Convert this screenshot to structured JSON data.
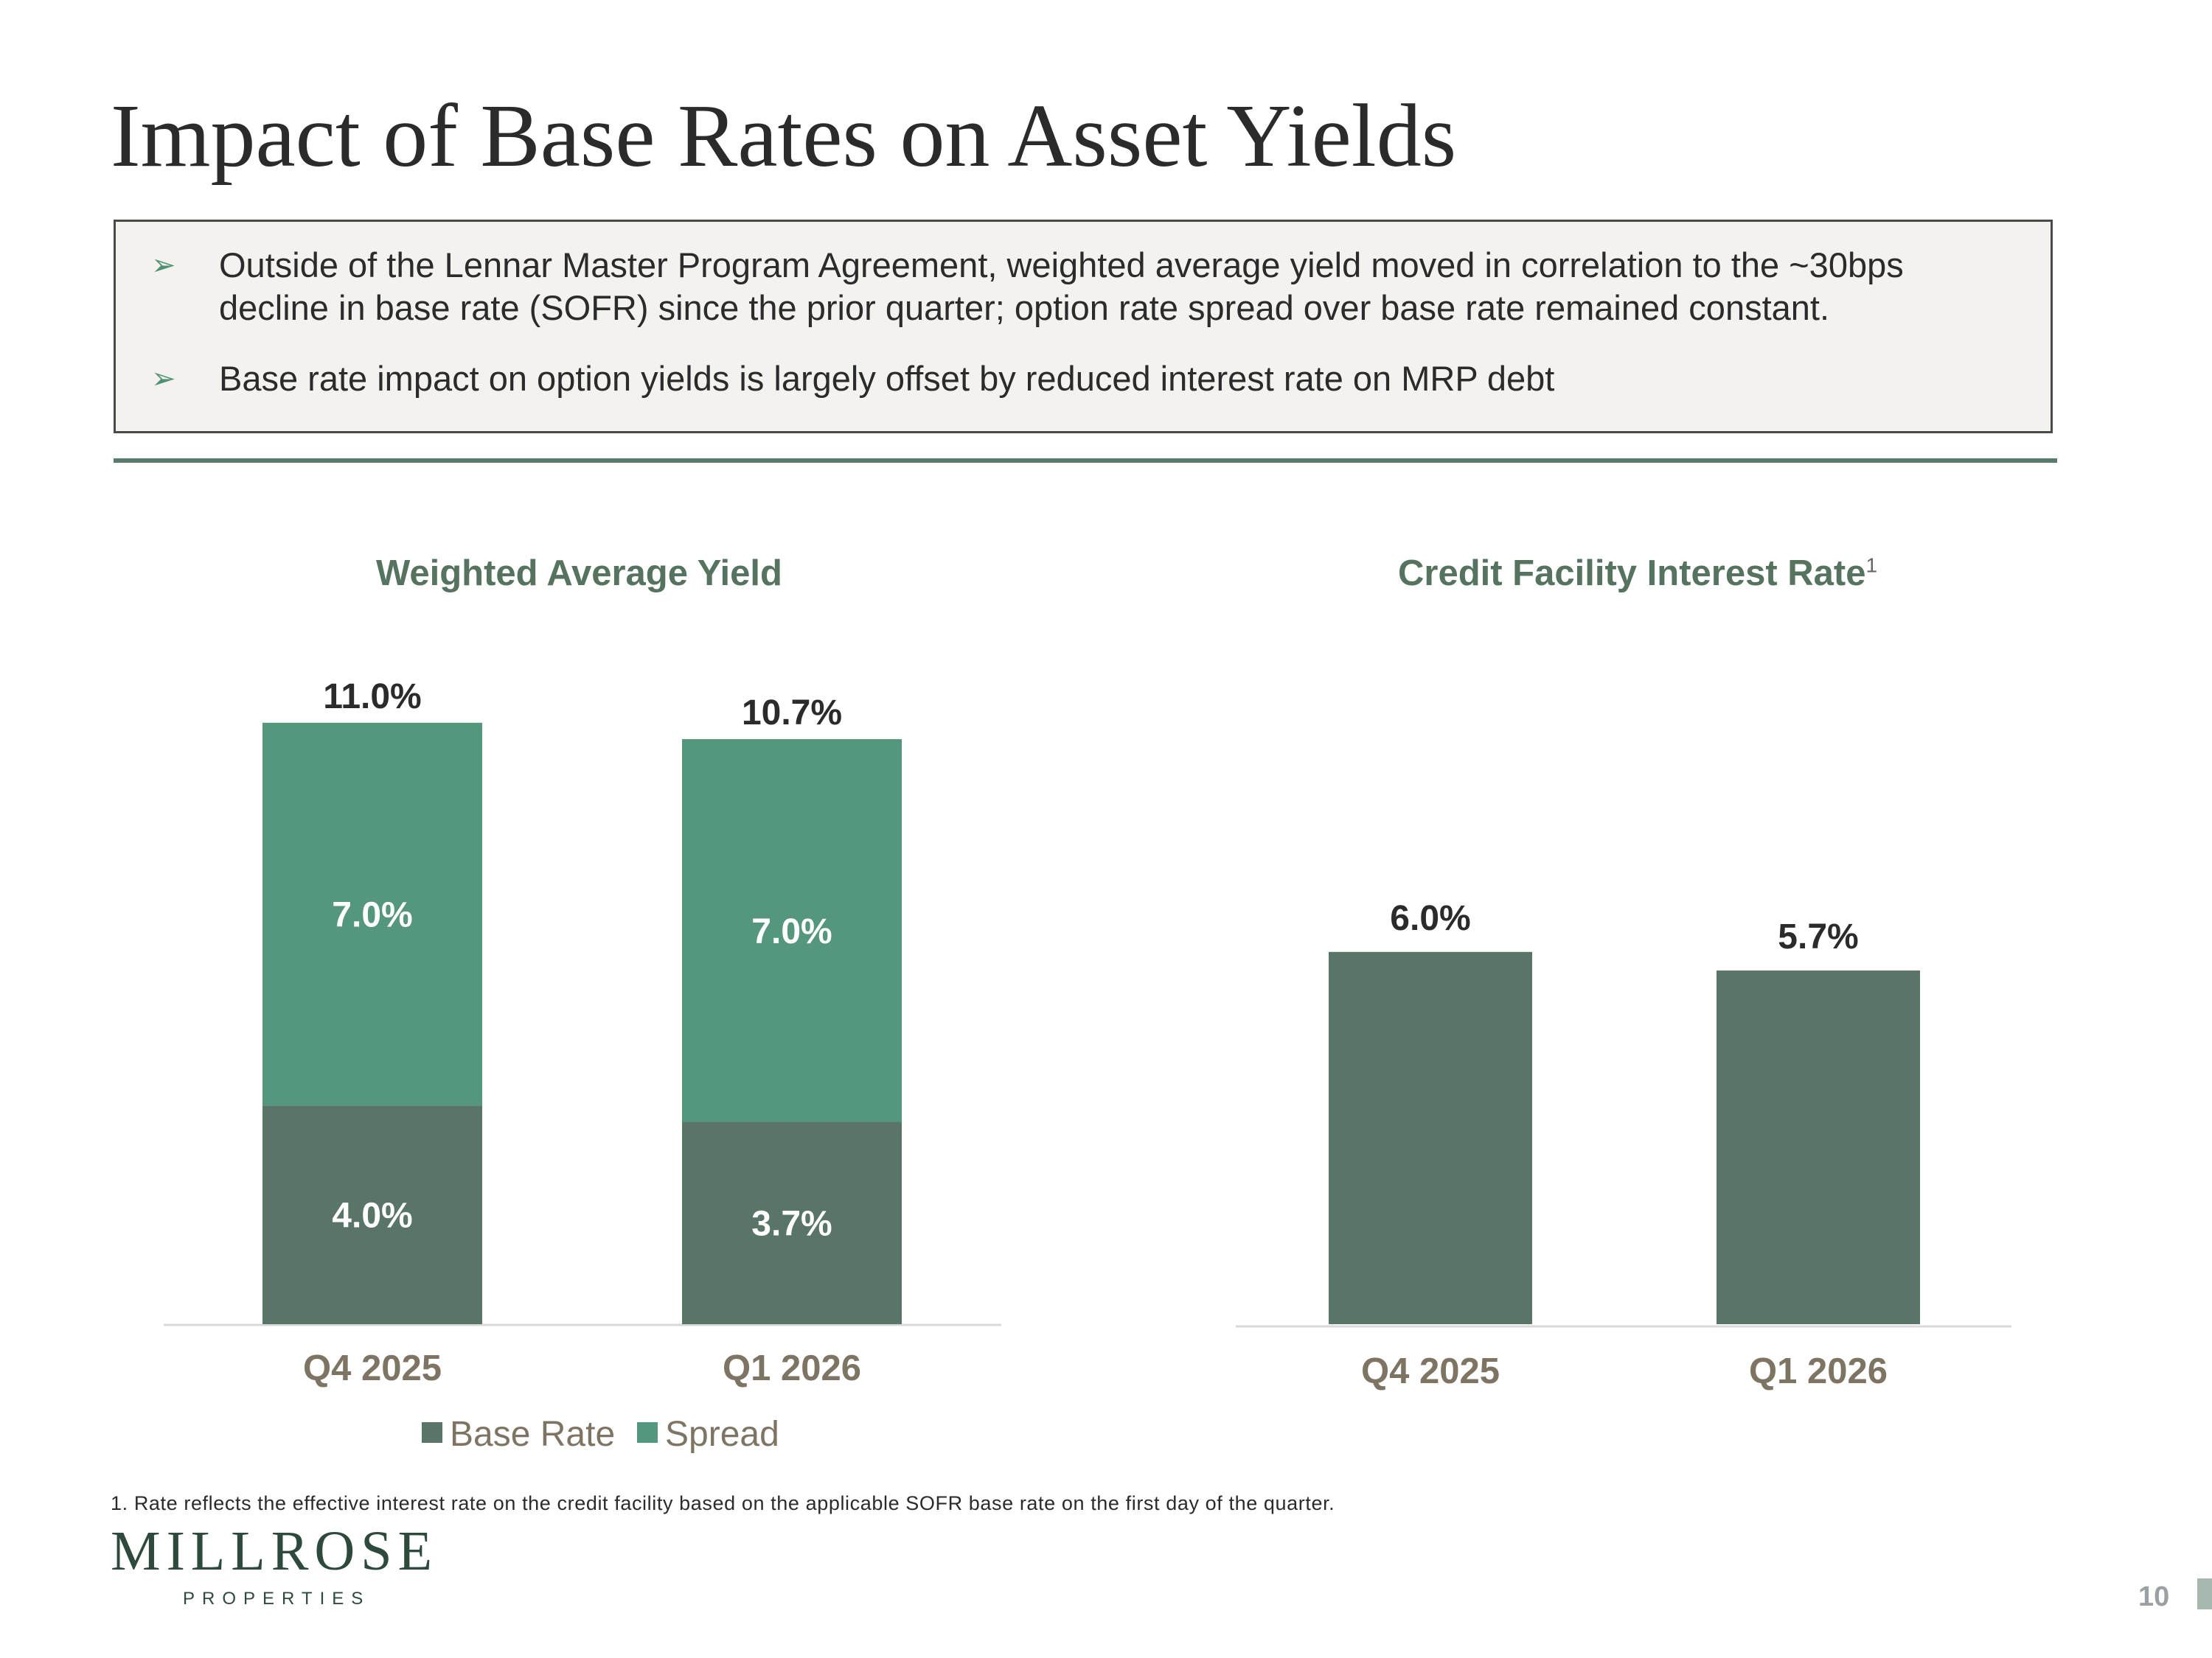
{
  "slide": {
    "title": "Impact of Base Rates on Asset Yields",
    "bullets": [
      "Outside of the Lennar Master Program Agreement, weighted average yield moved in correlation to the ~30bps decline in base rate (SOFR) since the prior quarter; option rate spread over base rate remained constant.",
      "Base rate impact on option yields is largely offset by reduced interest rate on MRP debt"
    ],
    "footnote": "1. Rate reflects the effective interest rate on the credit facility based on the applicable SOFR base rate on the first day of the quarter.",
    "logo_main": "MILLROSE",
    "logo_sub": "PROPERTIES",
    "page_number": "10",
    "bullet_glyph": "➢"
  },
  "colors": {
    "base_rate": "#587567",
    "spread": "#55977c",
    "axis_label": "#7d7463",
    "chart_title": "#56735f"
  },
  "chart_data": [
    {
      "type": "bar",
      "stacked": true,
      "title": "Weighted Average Yield",
      "categories": [
        "Q4 2025",
        "Q1 2026"
      ],
      "series": [
        {
          "name": "Base Rate",
          "values": [
            4.0,
            3.7
          ],
          "labels": [
            "4.0%",
            "3.7%"
          ],
          "color": "#587567"
        },
        {
          "name": "Spread",
          "values": [
            7.0,
            7.0
          ],
          "labels": [
            "7.0%",
            "7.0%"
          ],
          "color": "#55977c"
        }
      ],
      "totals": [
        11.0,
        10.7
      ],
      "total_labels": [
        "11.0%",
        "10.7%"
      ],
      "legend": "bottom",
      "grid": false,
      "ylim": [
        0,
        11.6
      ]
    },
    {
      "type": "bar",
      "title": "Credit Facility Interest Rate",
      "title_footnote_marker": "1",
      "categories": [
        "Q4 2025",
        "Q1 2026"
      ],
      "values": [
        6.0,
        5.7
      ],
      "labels": [
        "6.0%",
        "5.7%"
      ],
      "color": "#587567",
      "legend": "none",
      "grid": false,
      "ylim": [
        0,
        9.0
      ]
    }
  ]
}
